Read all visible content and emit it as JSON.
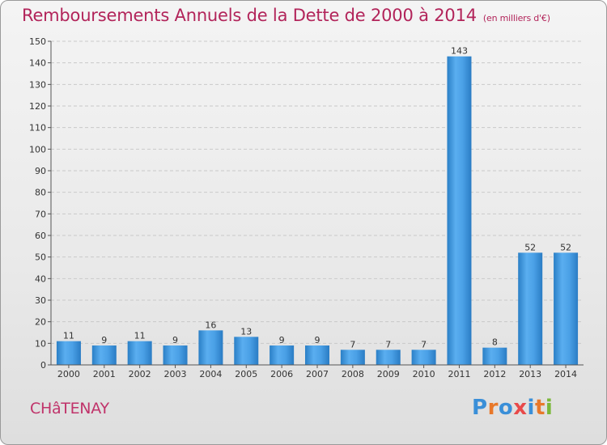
{
  "title": "Remboursements Annuels de la Dette de 2000 à 2014",
  "subtitle": "(en milliers d'€)",
  "city": "CHâTENAY",
  "logo": {
    "letters": [
      "P",
      "r",
      "o",
      "x",
      "i",
      "t",
      "i"
    ],
    "colors": [
      "#3a8fd8",
      "#e8782a",
      "#3a8fd8",
      "#e84a4a",
      "#3a8fd8",
      "#e8782a",
      "#7ab83a"
    ]
  },
  "colors": {
    "bar": "#3a93d9",
    "title": "#b2245a"
  },
  "chart_data": {
    "type": "bar",
    "categories": [
      "2000",
      "2001",
      "2002",
      "2003",
      "2004",
      "2005",
      "2006",
      "2007",
      "2008",
      "2009",
      "2010",
      "2011",
      "2012",
      "2013",
      "2014"
    ],
    "values": [
      11,
      9,
      11,
      9,
      16,
      13,
      9,
      9,
      7,
      7,
      7,
      143,
      8,
      52,
      52
    ],
    "ylim": [
      0,
      150
    ],
    "yticks": [
      0,
      10,
      20,
      30,
      40,
      50,
      60,
      70,
      80,
      90,
      100,
      110,
      120,
      130,
      140,
      150
    ],
    "grid": true
  }
}
